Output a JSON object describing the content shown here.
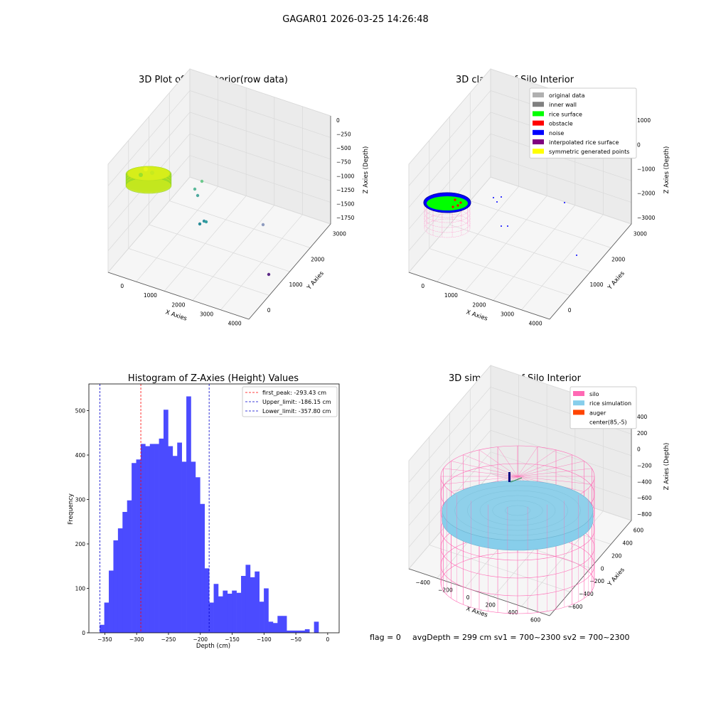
{
  "suptitle": "GAGAR01 2026-03-25 14:26:48",
  "footer": {
    "flag": "flag = 0",
    "stats": "avgDepth = 299 cm  sv1 = 700~2300  sv2 = 700~2300"
  },
  "colors": {
    "hist_bar": "#4b4bff",
    "first_peak": "#ff0000",
    "limits": "#0000cc",
    "grid": "#d9d9d9",
    "pane": "#f2f2f2",
    "silo_wire": "#ff69b4",
    "rice_sim": "#87ceeb",
    "auger": "#ff4500"
  },
  "chart_data": [
    {
      "type": "scatter",
      "subtype": "3d-scatter",
      "title": "3D Plot of Silo Interior(row data)",
      "xlabel": "X Axies",
      "ylabel": "Y Axies",
      "zlabel": "Z Axies (Depth)",
      "x_ticks": [
        "0",
        "1000",
        "2000",
        "3000",
        "4000"
      ],
      "y_ticks": [
        "0",
        "1000",
        "2000",
        "3000"
      ],
      "z_ticks": [
        "0",
        "−250",
        "−500",
        "−750",
        "−1000",
        "−1250",
        "−1500",
        "−1750"
      ]
    },
    {
      "type": "scatter",
      "subtype": "3d-scatter",
      "title": "3D classify of Silo Interior",
      "xlabel": "X Axies",
      "ylabel": "Y Axies",
      "zlabel": "Z Axies (Depth)",
      "x_ticks": [
        "0",
        "1000",
        "2000",
        "3000",
        "4000"
      ],
      "y_ticks": [
        "0",
        "1000",
        "2000",
        "3000"
      ],
      "z_ticks": [
        "1000",
        "0",
        "−1000",
        "−2000",
        "−3000"
      ],
      "legend_position": "top-right",
      "legend": [
        {
          "label": "original data",
          "color": "#b0b0b0"
        },
        {
          "label": "inner wall",
          "color": "#808080"
        },
        {
          "label": "rice surface",
          "color": "#00ff00"
        },
        {
          "label": "obstacle",
          "color": "#ff0000"
        },
        {
          "label": "noise",
          "color": "#0000ff"
        },
        {
          "label": "interpolated rice surface",
          "color": "#800080"
        },
        {
          "label": "symmetric generated points",
          "color": "#ffff00"
        }
      ]
    },
    {
      "type": "bar",
      "subtype": "histogram",
      "title": "Histogram of Z-Axies (Height) Values",
      "xlabel": "Depth (cm)",
      "ylabel": "Frequency",
      "xlim": [
        -375,
        18
      ],
      "ylim": [
        0,
        560
      ],
      "x_ticks": [
        {
          "value": -350,
          "label": "−350"
        },
        {
          "value": -300,
          "label": "−300"
        },
        {
          "value": -250,
          "label": "−250"
        },
        {
          "value": -200,
          "label": "−200"
        },
        {
          "value": -150,
          "label": "−150"
        },
        {
          "value": -100,
          "label": "−100"
        },
        {
          "value": -50,
          "label": "−50"
        },
        {
          "value": 0,
          "label": "0"
        }
      ],
      "y_ticks": [
        0,
        100,
        200,
        300,
        400,
        500
      ],
      "bin_start": -358,
      "bin_width": 7.16,
      "values": [
        18,
        68,
        140,
        208,
        235,
        272,
        298,
        382,
        390,
        425,
        420,
        425,
        425,
        437,
        502,
        420,
        398,
        428,
        385,
        532,
        385,
        350,
        290,
        145,
        68,
        110,
        82,
        95,
        88,
        95,
        90,
        128,
        153,
        125,
        138,
        70,
        100,
        25,
        22,
        38,
        38,
        5,
        5,
        5,
        5,
        8,
        0,
        25
      ],
      "lines": [
        {
          "label": "first_peak: -293.43 cm",
          "x": -293.43,
          "color": "#ff0000"
        },
        {
          "label": "Upper_limit: -186.15 cm",
          "x": -186.15,
          "color": "#0000cc"
        },
        {
          "label": "Lower_limit: -357.80 cm",
          "x": -357.8,
          "color": "#0000cc"
        }
      ],
      "legend_position": "top-right"
    },
    {
      "type": "scatter",
      "subtype": "3d-surface",
      "title": "3D simulation of Silo Interior",
      "xlabel": "X Axies",
      "ylabel": "Y Axies",
      "zlabel": "Z Axies (Depth)",
      "x_ticks": [
        "−400",
        "−200",
        "0",
        "200",
        "400",
        "600"
      ],
      "y_ticks": [
        "−600",
        "−400",
        "−200",
        "0",
        "200",
        "400",
        "600"
      ],
      "z_ticks": [
        "400",
        "200",
        "0",
        "−200",
        "−400",
        "−600",
        "−800"
      ],
      "legend_position": "top-right",
      "legend": [
        {
          "label": "silo",
          "color": "#ff69b4"
        },
        {
          "label": "rice simulation",
          "color": "#87ceeb"
        },
        {
          "label": "auger",
          "color": "#ff4500"
        },
        {
          "label": "center(85,-5)",
          "color": ""
        }
      ]
    }
  ]
}
